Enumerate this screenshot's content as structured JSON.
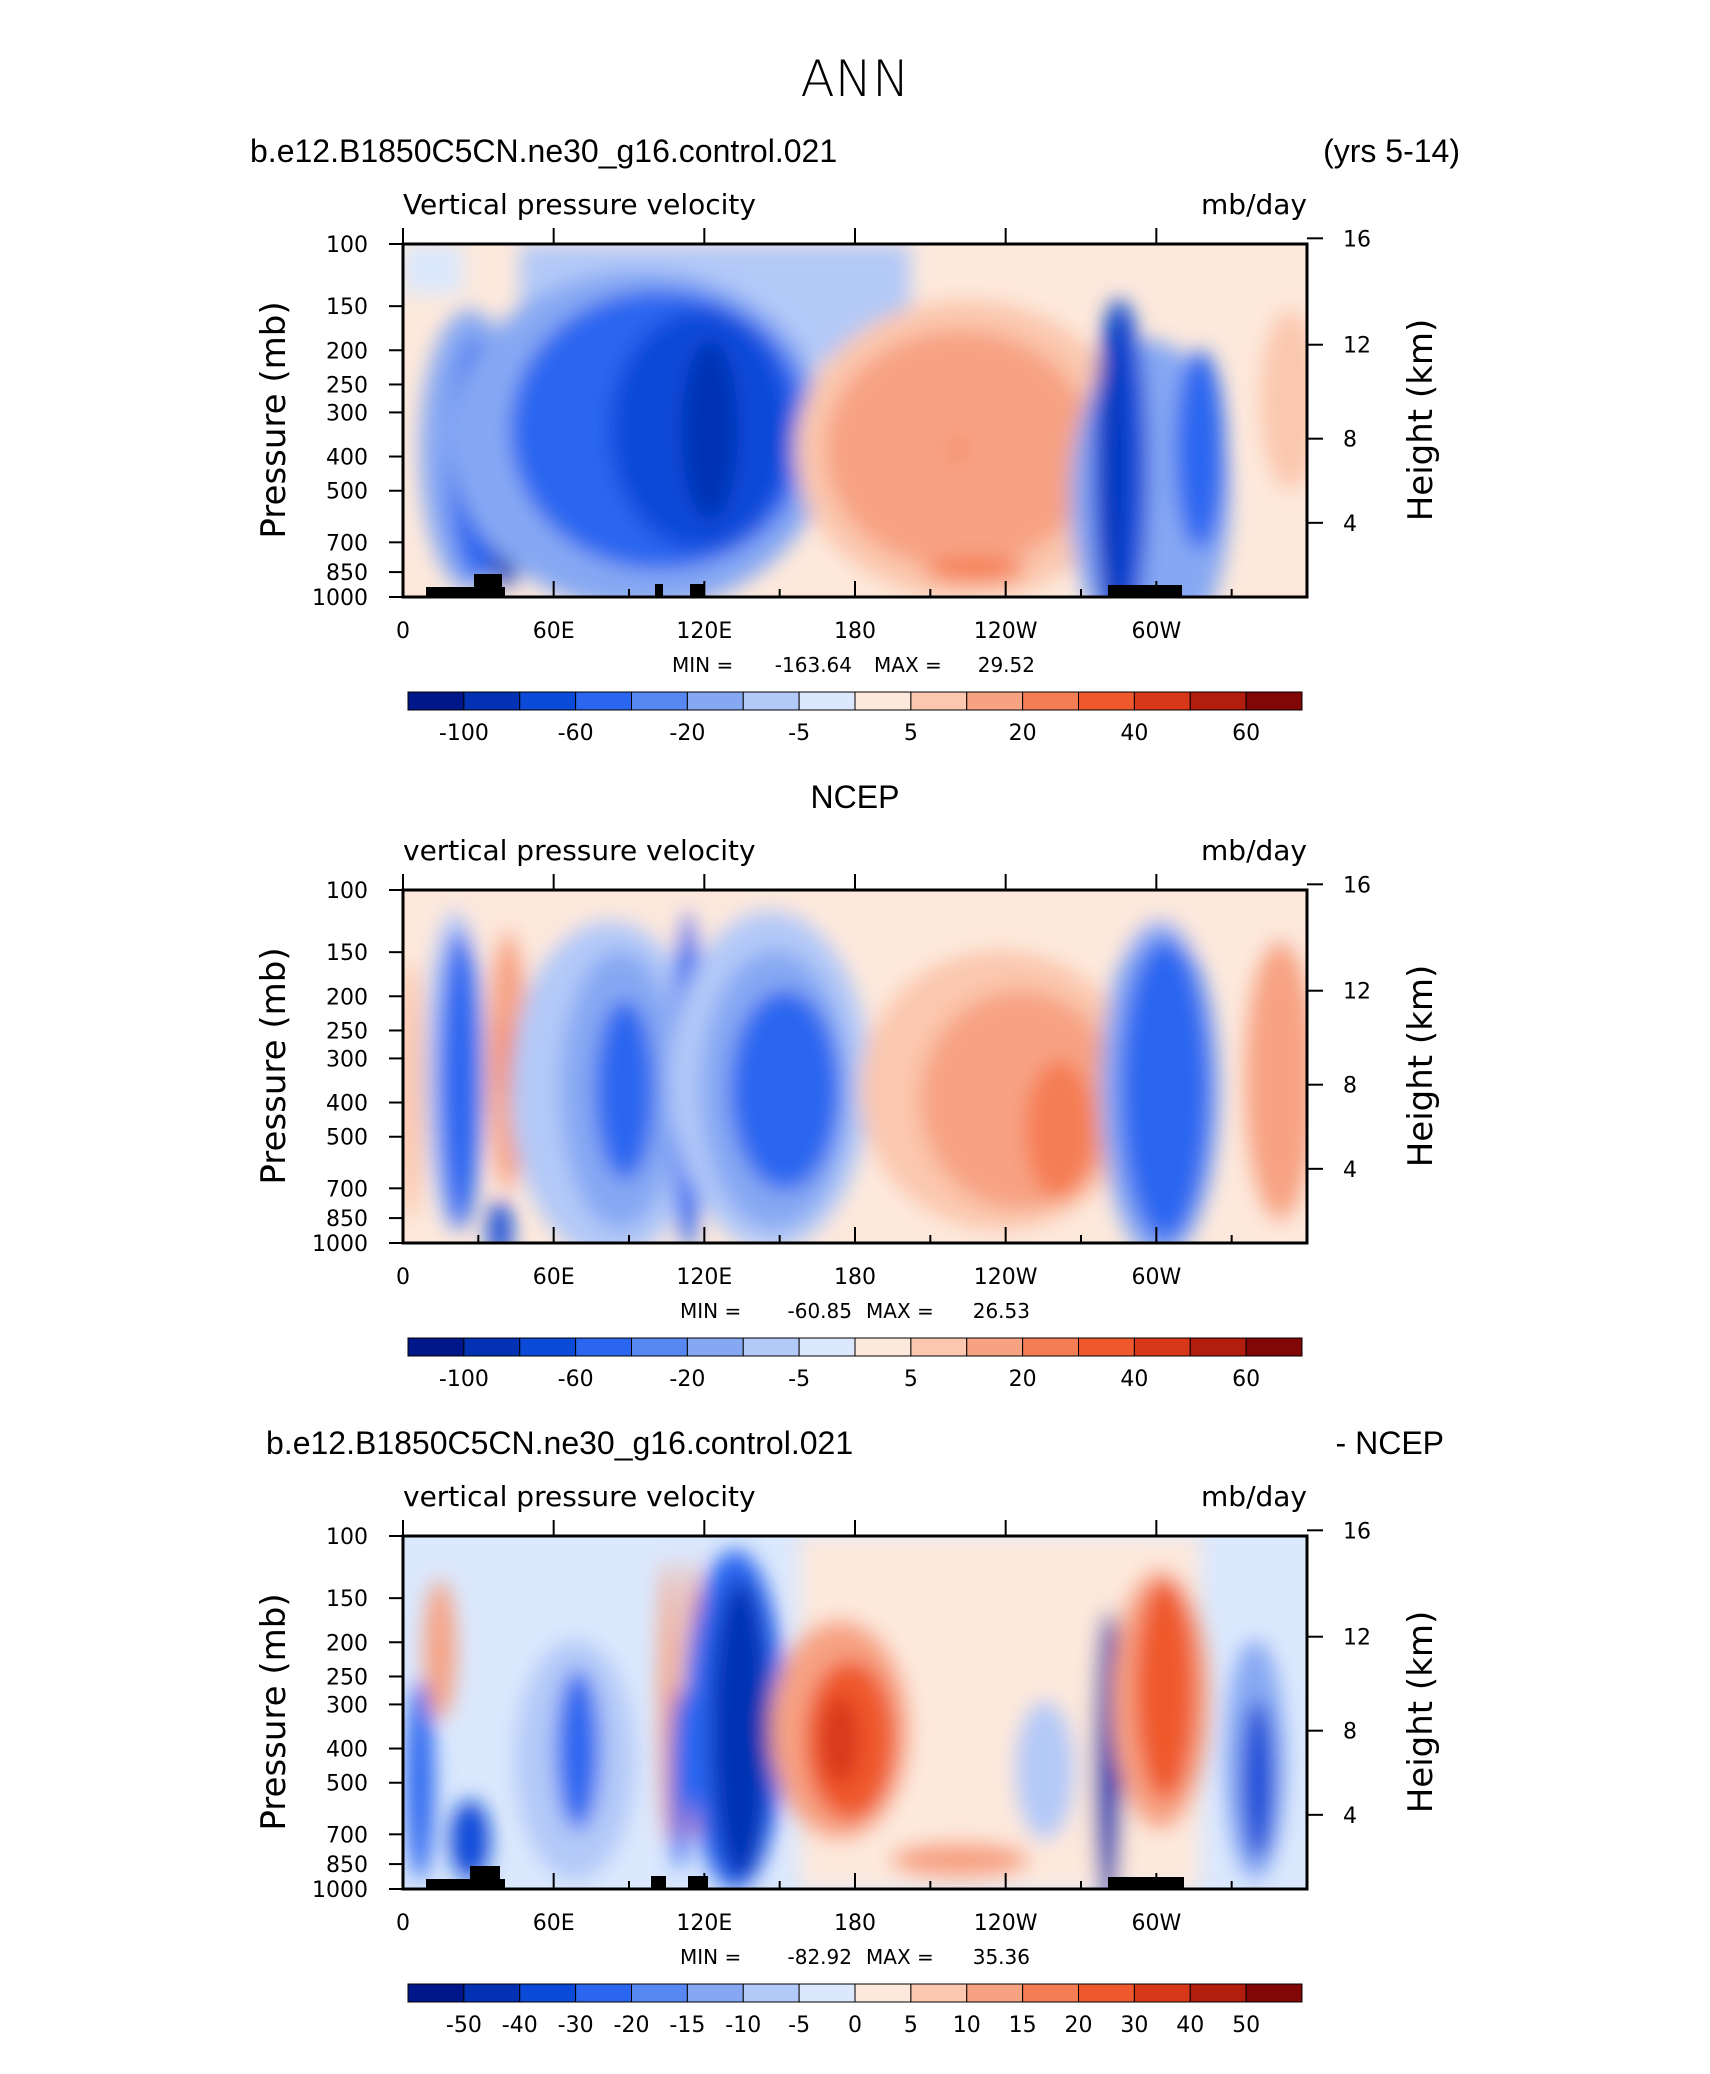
{
  "page": {
    "title": "ANN"
  },
  "chart_data": [
    {
      "type": "heatmap",
      "header_left": "b.e12.B1850C5CN.ne30_g16.control.021",
      "header_right": "(yrs 5-14)",
      "title": "Vertical pressure velocity",
      "units": "mb/day",
      "ylabel": "Pressure (mb)",
      "y2label": "Height (km)",
      "x_ticks": [
        {
          "lon": 0,
          "label": "0"
        },
        {
          "lon": 60,
          "label": "60E"
        },
        {
          "lon": 120,
          "label": "120E"
        },
        {
          "lon": 180,
          "label": "180"
        },
        {
          "lon": 240,
          "label": "120W"
        },
        {
          "lon": 300,
          "label": "60W"
        }
      ],
      "xlim": [
        0,
        360
      ],
      "y_ticks": [
        {
          "p": 100,
          "label": "100"
        },
        {
          "p": 150,
          "label": "150"
        },
        {
          "p": 200,
          "label": "200"
        },
        {
          "p": 250,
          "label": "250"
        },
        {
          "p": 300,
          "label": "300"
        },
        {
          "p": 400,
          "label": "400"
        },
        {
          "p": 500,
          "label": "500"
        },
        {
          "p": 700,
          "label": "700"
        },
        {
          "p": 850,
          "label": "850"
        },
        {
          "p": 1000,
          "label": "1000"
        }
      ],
      "ylim": [
        1000,
        100
      ],
      "y_scale": "log",
      "height_ticks": [
        {
          "km": 16,
          "label": "16"
        },
        {
          "km": 12,
          "label": "12"
        },
        {
          "km": 8,
          "label": "8"
        },
        {
          "km": 4,
          "label": "4"
        }
      ],
      "stats": {
        "min_label": "MIN = ",
        "min": "-163.64",
        "max_label": "MAX = ",
        "max": "29.52"
      },
      "colorbar": {
        "labels": [
          "-100",
          "-60",
          "-20",
          "-5",
          "5",
          "20",
          "40",
          "60"
        ],
        "colors": [
          "#00178a",
          "#0232b3",
          "#0b4ad8",
          "#2a66f0",
          "#5787f2",
          "#86a8f3",
          "#b3c9f8",
          "#dbe8fd",
          "#fde9dc",
          "#fbc7ae",
          "#f7a283",
          "#f57d53",
          "#ef582c",
          "#d9371a",
          "#b31d0e",
          "#820605"
        ]
      },
      "features": [
        {
          "lon": 180,
          "p": 1000,
          "label": ""
        }
      ]
    },
    {
      "type": "heatmap",
      "header_center": "NCEP",
      "title": "vertical pressure velocity",
      "units": "mb/day",
      "ylabel": "Pressure (mb)",
      "y2label": "Height (km)",
      "stats": {
        "min_label": "MIN = ",
        "min": "-60.85",
        "max_label": "MAX = ",
        "max": "26.53"
      },
      "colorbar": {
        "labels": [
          "-100",
          "-60",
          "-20",
          "-5",
          "5",
          "20",
          "40",
          "60"
        ]
      }
    },
    {
      "type": "heatmap",
      "header_left": "b.e12.B1850C5CN.ne30_g16.control.021",
      "header_right": "- NCEP",
      "title": "vertical pressure velocity",
      "units": "mb/day",
      "ylabel": "Pressure (mb)",
      "y2label": "Height (km)",
      "stats": {
        "min_label": "MIN = ",
        "min": "-82.92",
        "max_label": "MAX = ",
        "max": "35.36"
      },
      "colorbar": {
        "labels": [
          "-50",
          "-40",
          "-30",
          "-20",
          "-15",
          "-10",
          "-5",
          "0",
          "5",
          "10",
          "15",
          "20",
          "30",
          "40",
          "50"
        ]
      }
    }
  ]
}
